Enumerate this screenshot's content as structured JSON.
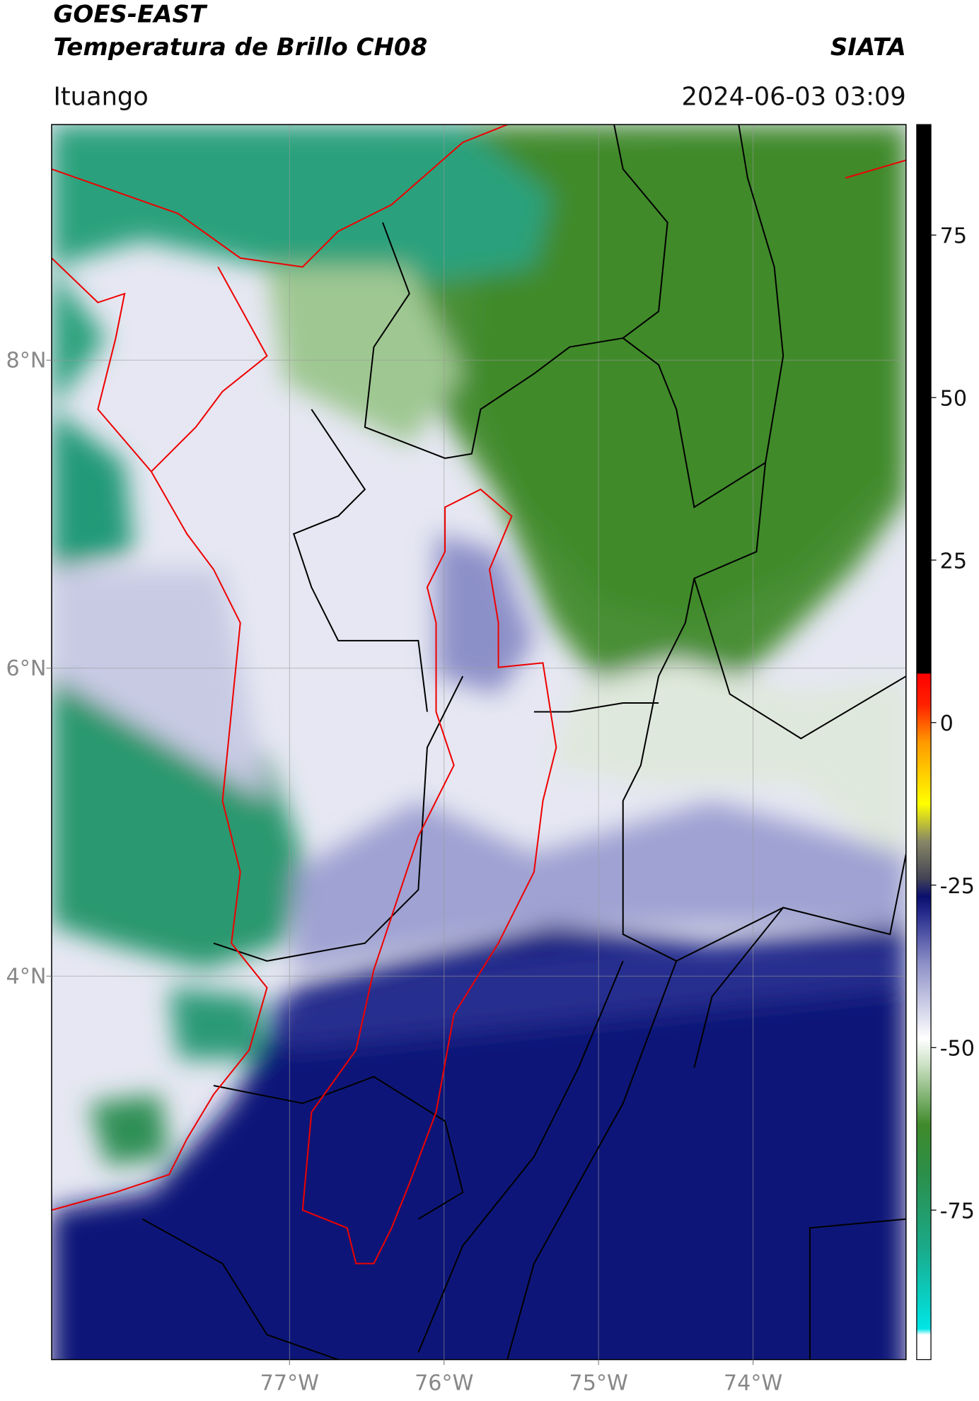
{
  "header": {
    "title": "GOES-EAST",
    "subtitle": "Temperatura de Brillo CH08",
    "source": "SIATA",
    "location": "Ituango",
    "datetime": "2024-06-03 03:09"
  },
  "map": {
    "lonlim": [
      -78.54,
      -73.01
    ],
    "latlim": [
      1.51,
      9.53
    ],
    "lonticks": [
      {
        "value": -77,
        "label": "77°W"
      },
      {
        "value": -76,
        "label": "76°W"
      },
      {
        "value": -75,
        "label": "75°W"
      },
      {
        "value": -74,
        "label": "74°W"
      }
    ],
    "latticks": [
      {
        "value": 8,
        "label": "8°N"
      },
      {
        "value": 6,
        "label": "6°N"
      },
      {
        "value": 4,
        "label": "4°N"
      }
    ],
    "grid": true
  },
  "colorbar": {
    "lim": [
      -98,
      92
    ],
    "ticks": [
      75,
      50,
      25,
      0,
      -25,
      -50,
      -75
    ]
  }
}
